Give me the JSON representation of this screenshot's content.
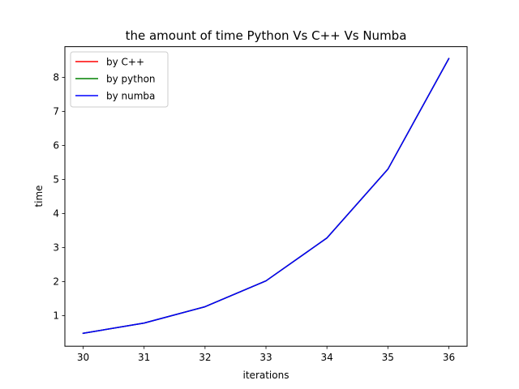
{
  "chart_data": {
    "type": "line",
    "title": "the amount of time  Python Vs C++ Vs Numba",
    "xlabel": "iterations",
    "ylabel": "time",
    "x": [
      30,
      31,
      32,
      33,
      34,
      35,
      36
    ],
    "xlim": [
      29.7,
      36.3
    ],
    "ylim": [
      0.1,
      8.9
    ],
    "xticks": [
      30,
      31,
      32,
      33,
      34,
      35,
      36
    ],
    "yticks": [
      1,
      2,
      3,
      4,
      5,
      6,
      7,
      8
    ],
    "grid": false,
    "legend_position": "upper-left",
    "series": [
      {
        "name": "by C++",
        "color": "#ff0000",
        "values": [
          0.48,
          0.78,
          1.26,
          2.02,
          3.28,
          5.3,
          8.55
        ]
      },
      {
        "name": "by python",
        "color": "#008000",
        "values": [
          0.48,
          0.78,
          1.26,
          2.02,
          3.28,
          5.3,
          8.55
        ]
      },
      {
        "name": "by numba",
        "color": "#0000ff",
        "values": [
          0.48,
          0.78,
          1.26,
          2.02,
          3.28,
          5.3,
          8.55
        ]
      }
    ]
  }
}
